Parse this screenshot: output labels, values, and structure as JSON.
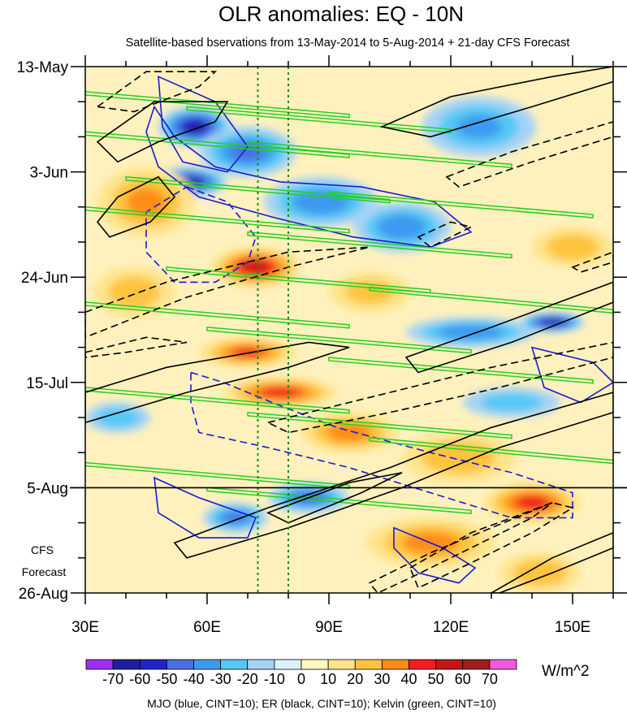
{
  "chart_data": {
    "type": "heatmap",
    "title": "OLR anomalies: EQ - 10N",
    "subtitle": "Satellite-based bservations from 13-May-2014 to 5-Aug-2014 + 21-day CFS Forecast",
    "x_ticks": [
      {
        "value": 30,
        "label": "30E"
      },
      {
        "value": 60,
        "label": "60E"
      },
      {
        "value": 90,
        "label": "90E"
      },
      {
        "value": 120,
        "label": "120E"
      },
      {
        "value": 150,
        "label": "150E"
      }
    ],
    "xlim": [
      30,
      160
    ],
    "y_ticks": [
      {
        "day": 0,
        "label": "13-May"
      },
      {
        "day": 21,
        "label": "3-Jun"
      },
      {
        "day": 42,
        "label": "24-Jun"
      },
      {
        "day": 63,
        "label": "15-Jul"
      },
      {
        "day": 84,
        "label": "5-Aug"
      },
      {
        "day": 105,
        "label": "26-Aug"
      }
    ],
    "ylim_days": [
      0,
      105
    ],
    "forecast_start_day": 84,
    "forecast_label": [
      "CFS",
      "Forecast"
    ],
    "reference_lines_lon": [
      72.5,
      80
    ],
    "colorbar": {
      "labels": [
        "-70",
        "-60",
        "-50",
        "-40",
        "-30",
        "-20",
        "-10",
        "0",
        "10",
        "20",
        "30",
        "40",
        "50",
        "60",
        "70"
      ],
      "colors": [
        "#9d2ff0",
        "#1e1ea0",
        "#2323c8",
        "#4a6fe0",
        "#3d99f0",
        "#55c8f5",
        "#a6d3f5",
        "#dcf2fa",
        "#fff8c0",
        "#ffe48c",
        "#ffc43c",
        "#ff8c14",
        "#f01e1e",
        "#c81414",
        "#a01e1e",
        "#f05adc"
      ],
      "unit": "W/m^2"
    },
    "footer": "MJO (blue, CINT=10); ER (black, CINT=10); Kelvin (green, CINT=10)",
    "anomaly_features": [
      {
        "lon": 57,
        "day": 12,
        "lon_width": 9,
        "day_width": 4,
        "value": -62
      },
      {
        "lon": 55,
        "day": 23,
        "lon_width": 10,
        "day_width": 3,
        "value": -66
      },
      {
        "lon": 70,
        "day": 17,
        "lon_width": 12,
        "day_width": 5,
        "value": -40
      },
      {
        "lon": 88,
        "day": 27,
        "lon_width": 14,
        "day_width": 5,
        "value": -35
      },
      {
        "lon": 108,
        "day": 32,
        "lon_width": 12,
        "day_width": 5,
        "value": -35
      },
      {
        "lon": 127,
        "day": 12,
        "lon_width": 14,
        "day_width": 6,
        "value": -28
      },
      {
        "lon": 45,
        "day": 27,
        "lon_width": 12,
        "day_width": 7,
        "value": 28
      },
      {
        "lon": 72,
        "day": 40,
        "lon_width": 11,
        "day_width": 4,
        "value": 50
      },
      {
        "lon": 42,
        "day": 45,
        "lon_width": 10,
        "day_width": 5,
        "value": 22
      },
      {
        "lon": 70,
        "day": 57,
        "lon_width": 12,
        "day_width": 3,
        "value": 38
      },
      {
        "lon": 78,
        "day": 65,
        "lon_width": 14,
        "day_width": 3,
        "value": 42
      },
      {
        "lon": 95,
        "day": 73,
        "lon_width": 12,
        "day_width": 4,
        "value": 32
      },
      {
        "lon": 122,
        "day": 78,
        "lon_width": 14,
        "day_width": 5,
        "value": 24
      },
      {
        "lon": 140,
        "day": 87,
        "lon_width": 12,
        "day_width": 4,
        "value": 42
      },
      {
        "lon": 115,
        "day": 95,
        "lon_width": 16,
        "day_width": 5,
        "value": 30
      },
      {
        "lon": 142,
        "day": 101,
        "lon_width": 10,
        "day_width": 4,
        "value": 25
      },
      {
        "lon": 85,
        "day": 86,
        "lon_width": 10,
        "day_width": 3,
        "value": -42
      },
      {
        "lon": 67,
        "day": 90,
        "lon_width": 8,
        "day_width": 3,
        "value": -38
      },
      {
        "lon": 125,
        "day": 53,
        "lon_width": 16,
        "day_width": 3,
        "value": -35
      },
      {
        "lon": 145,
        "day": 51,
        "lon_width": 8,
        "day_width": 2,
        "value": -65
      },
      {
        "lon": 38,
        "day": 70,
        "lon_width": 8,
        "day_width": 3,
        "value": -25
      },
      {
        "lon": 150,
        "day": 36,
        "lon_width": 10,
        "day_width": 4,
        "value": 24
      },
      {
        "lon": 100,
        "day": 45,
        "lon_width": 10,
        "day_width": 4,
        "value": 20
      },
      {
        "lon": 135,
        "day": 67,
        "lon_width": 12,
        "day_width": 3,
        "value": -22
      }
    ],
    "mjo_contours": [
      {
        "style": "solid",
        "points": [
          [
            47,
            8
          ],
          [
            52,
            14
          ],
          [
            62,
            20
          ],
          [
            78,
            23
          ],
          [
            98,
            24
          ],
          [
            116,
            27
          ],
          [
            125,
            33
          ],
          [
            115,
            36
          ],
          [
            96,
            34
          ],
          [
            76,
            30
          ],
          [
            58,
            26
          ],
          [
            48,
            20
          ],
          [
            45,
            13
          ]
        ]
      },
      {
        "style": "solid",
        "points": [
          [
            48,
            2
          ],
          [
            62,
            7
          ],
          [
            70,
            16
          ],
          [
            65,
            21
          ],
          [
            54,
            19
          ],
          [
            49,
            12
          ]
        ]
      },
      {
        "style": "dashed",
        "points": [
          [
            55,
            24
          ],
          [
            65,
            27
          ],
          [
            72,
            34
          ],
          [
            70,
            39
          ],
          [
            62,
            43
          ],
          [
            52,
            43
          ],
          [
            45,
            37
          ],
          [
            45,
            29
          ]
        ]
      },
      {
        "style": "solid",
        "points": [
          [
            140,
            56
          ],
          [
            155,
            59
          ],
          [
            160,
            63
          ],
          [
            152,
            67
          ],
          [
            143,
            64
          ]
        ]
      },
      {
        "style": "dashed",
        "points": [
          [
            56,
            61
          ],
          [
            64,
            63
          ],
          [
            76,
            67
          ],
          [
            92,
            72
          ],
          [
            115,
            77
          ],
          [
            135,
            81
          ],
          [
            150,
            85
          ],
          [
            150,
            90
          ],
          [
            135,
            90
          ],
          [
            115,
            85
          ],
          [
            95,
            80
          ],
          [
            75,
            76
          ],
          [
            58,
            73
          ],
          [
            56,
            67
          ]
        ]
      },
      {
        "style": "solid",
        "points": [
          [
            47,
            82
          ],
          [
            58,
            86
          ],
          [
            72,
            90
          ],
          [
            70,
            94
          ],
          [
            58,
            94
          ],
          [
            48,
            89
          ]
        ]
      },
      {
        "style": "solid",
        "points": [
          [
            106,
            92
          ],
          [
            118,
            96
          ],
          [
            126,
            100
          ],
          [
            122,
            103
          ],
          [
            112,
            101
          ],
          [
            106,
            96
          ]
        ]
      }
    ],
    "er_contours": [
      {
        "style": "solid",
        "points": [
          [
            33,
            15
          ],
          [
            47,
            7
          ],
          [
            65,
            7
          ],
          [
            62,
            11
          ],
          [
            48,
            15
          ],
          [
            38,
            19
          ]
        ]
      },
      {
        "style": "solid",
        "points": [
          [
            33,
            31
          ],
          [
            38,
            26
          ],
          [
            48,
            22
          ],
          [
            52,
            26
          ],
          [
            46,
            31
          ],
          [
            36,
            34
          ]
        ]
      },
      {
        "style": "dashed",
        "points": [
          [
            33,
            8
          ],
          [
            45,
            1
          ],
          [
            62,
            1
          ],
          [
            58,
            4
          ],
          [
            42,
            9
          ]
        ]
      },
      {
        "style": "solid",
        "points": [
          [
            103,
            12
          ],
          [
            120,
            6
          ],
          [
            145,
            2
          ],
          [
            160,
            0
          ],
          [
            160,
            3
          ],
          [
            140,
            8
          ],
          [
            115,
            14
          ]
        ]
      },
      {
        "style": "dashed",
        "points": [
          [
            119,
            22
          ],
          [
            135,
            17
          ],
          [
            160,
            11
          ],
          [
            160,
            14
          ],
          [
            140,
            19
          ],
          [
            122,
            24
          ]
        ]
      },
      {
        "style": "dashed",
        "points": [
          [
            30,
            49
          ],
          [
            50,
            43
          ],
          [
            80,
            37
          ],
          [
            100,
            36
          ],
          [
            80,
            40
          ],
          [
            55,
            46
          ],
          [
            30,
            54
          ]
        ]
      },
      {
        "style": "dashed",
        "points": [
          [
            30,
            57
          ],
          [
            45,
            54
          ],
          [
            55,
            55
          ],
          [
            40,
            57
          ],
          [
            30,
            58
          ]
        ]
      },
      {
        "style": "solid",
        "points": [
          [
            30,
            65
          ],
          [
            50,
            60
          ],
          [
            85,
            55
          ],
          [
            95,
            56
          ],
          [
            80,
            60
          ],
          [
            55,
            65
          ],
          [
            30,
            71
          ]
        ]
      },
      {
        "style": "solid",
        "points": [
          [
            109,
            58
          ],
          [
            130,
            52
          ],
          [
            160,
            43
          ],
          [
            160,
            47
          ],
          [
            135,
            55
          ],
          [
            112,
            61
          ]
        ]
      },
      {
        "style": "dashed",
        "points": [
          [
            75,
            71
          ],
          [
            100,
            66
          ],
          [
            130,
            60
          ],
          [
            160,
            55
          ],
          [
            160,
            58
          ],
          [
            132,
            64
          ],
          [
            105,
            69
          ],
          [
            80,
            73
          ]
        ]
      },
      {
        "style": "dashed",
        "points": [
          [
            112,
            34
          ],
          [
            120,
            31
          ],
          [
            125,
            32
          ],
          [
            115,
            36
          ]
        ]
      },
      {
        "style": "dashed",
        "points": [
          [
            150,
            40
          ],
          [
            160,
            37
          ],
          [
            160,
            39
          ],
          [
            152,
            41
          ]
        ]
      },
      {
        "style": "solid",
        "points": [
          [
            52,
            95
          ],
          [
            75,
            88
          ],
          [
            105,
            80
          ],
          [
            130,
            72
          ],
          [
            160,
            65
          ],
          [
            160,
            69
          ],
          [
            132,
            76
          ],
          [
            108,
            84
          ],
          [
            80,
            92
          ],
          [
            55,
            98
          ]
        ]
      },
      {
        "style": "solid",
        "points": [
          [
            75,
            89
          ],
          [
            95,
            83
          ],
          [
            108,
            81
          ],
          [
            98,
            85
          ],
          [
            80,
            91
          ]
        ]
      },
      {
        "style": "dashed",
        "points": [
          [
            110,
            100
          ],
          [
            125,
            93
          ],
          [
            145,
            87
          ],
          [
            150,
            88
          ],
          [
            140,
            93
          ],
          [
            125,
            99
          ],
          [
            112,
            104
          ]
        ]
      },
      {
        "style": "dashed",
        "points": [
          [
            100,
            103
          ],
          [
            115,
            97
          ],
          [
            130,
            92
          ],
          [
            145,
            87
          ],
          [
            140,
            90
          ],
          [
            125,
            96
          ],
          [
            110,
            102
          ],
          [
            102,
            105
          ]
        ]
      },
      {
        "style": "solid",
        "points": [
          [
            130,
            105
          ],
          [
            145,
            98
          ],
          [
            160,
            93
          ],
          [
            160,
            96
          ],
          [
            145,
            101
          ],
          [
            132,
            105
          ]
        ]
      }
    ]
  }
}
